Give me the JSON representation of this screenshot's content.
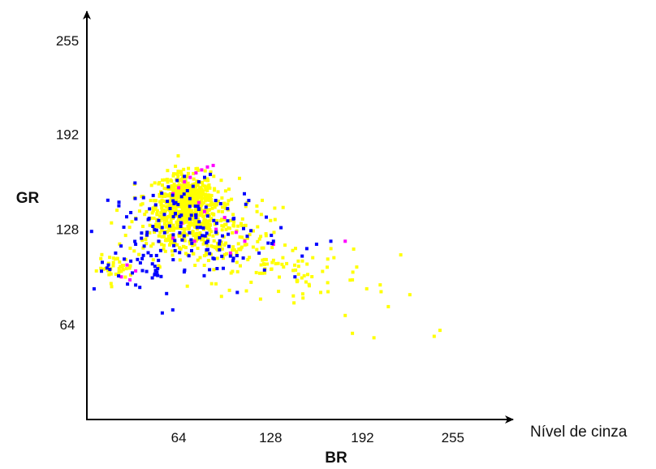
{
  "chart_data": {
    "type": "scatter",
    "title": "",
    "xlabel": "BR",
    "ylabel": "GR",
    "x_side_label": "Nível de cinza",
    "xlim": [
      0,
      280
    ],
    "ylim": [
      0,
      272
    ],
    "x_ticks": [
      {
        "value": 64,
        "label": "64"
      },
      {
        "value": 128,
        "label": "128"
      },
      {
        "value": 192,
        "label": "192"
      },
      {
        "value": 255,
        "label": "255"
      }
    ],
    "y_ticks": [
      {
        "value": 64,
        "label": "64"
      },
      {
        "value": 128,
        "label": "128"
      },
      {
        "value": 192,
        "label": "192"
      },
      {
        "value": 255,
        "label": "255"
      }
    ],
    "grid": false,
    "legend": "none",
    "density_colors": {
      "low": "#ffff00",
      "mid": "#ff00ff",
      "high": "#0000ff"
    },
    "series": [
      {
        "color": "#ffff00",
        "clusters": [
          {
            "x": 68,
            "y": 148,
            "sx": 10,
            "sy": 9,
            "n": 420
          },
          {
            "x": 78,
            "y": 138,
            "sx": 14,
            "sy": 12,
            "n": 260
          },
          {
            "x": 55,
            "y": 130,
            "sx": 13,
            "sy": 10,
            "n": 140
          },
          {
            "x": 100,
            "y": 118,
            "sx": 22,
            "sy": 12,
            "n": 120
          },
          {
            "x": 140,
            "y": 100,
            "sx": 30,
            "sy": 9,
            "n": 60
          },
          {
            "x": 20,
            "y": 102,
            "sx": 6,
            "sy": 4,
            "n": 40
          }
        ],
        "points": [
          [
            195,
            88
          ],
          [
            205,
            86
          ],
          [
            225,
            84
          ],
          [
            210,
            76
          ],
          [
            180,
            70
          ],
          [
            185,
            58
          ],
          [
            200,
            55
          ],
          [
            246,
            60
          ],
          [
            242,
            56
          ],
          [
            168,
            86
          ],
          [
            155,
            90
          ],
          [
            185,
            94
          ]
        ]
      },
      {
        "color": "#ff00ff",
        "points": [
          [
            60,
            152
          ],
          [
            64,
            156
          ],
          [
            68,
            160
          ],
          [
            72,
            163
          ],
          [
            76,
            166
          ],
          [
            80,
            168
          ],
          [
            84,
            170
          ],
          [
            88,
            171
          ],
          [
            78,
            146
          ],
          [
            82,
            140
          ],
          [
            66,
            132
          ],
          [
            90,
            128
          ],
          [
            96,
            136
          ],
          [
            104,
            126
          ],
          [
            110,
            120
          ],
          [
            24,
            96
          ],
          [
            30,
            94
          ],
          [
            34,
            100
          ],
          [
            28,
            104
          ],
          [
            130,
            118
          ],
          [
            180,
            120
          ],
          [
            75,
            120
          ],
          [
            60,
            122
          ],
          [
            100,
            112
          ]
        ]
      },
      {
        "color": "#0000ff",
        "clusters": [
          {
            "x": 75,
            "y": 130,
            "sx": 30,
            "sy": 14,
            "n": 110
          },
          {
            "x": 55,
            "y": 105,
            "sx": 25,
            "sy": 14,
            "n": 50
          }
        ],
        "points": [
          [
            14,
            102
          ],
          [
            15,
            104
          ],
          [
            16,
            101
          ],
          [
            34,
            118
          ],
          [
            38,
            122
          ],
          [
            42,
            126
          ],
          [
            46,
            130
          ],
          [
            50,
            134
          ],
          [
            54,
            138
          ],
          [
            58,
            142
          ],
          [
            62,
            146
          ],
          [
            66,
            150
          ],
          [
            70,
            154
          ],
          [
            74,
            157
          ],
          [
            78,
            160
          ],
          [
            82,
            163
          ],
          [
            86,
            165
          ],
          [
            20,
            112
          ],
          [
            26,
            108
          ],
          [
            150,
            110
          ],
          [
            160,
            118
          ],
          [
            170,
            120
          ],
          [
            130,
            120
          ],
          [
            120,
            112
          ],
          [
            145,
            96
          ],
          [
            100,
            110
          ],
          [
            90,
            126
          ]
        ]
      }
    ]
  }
}
